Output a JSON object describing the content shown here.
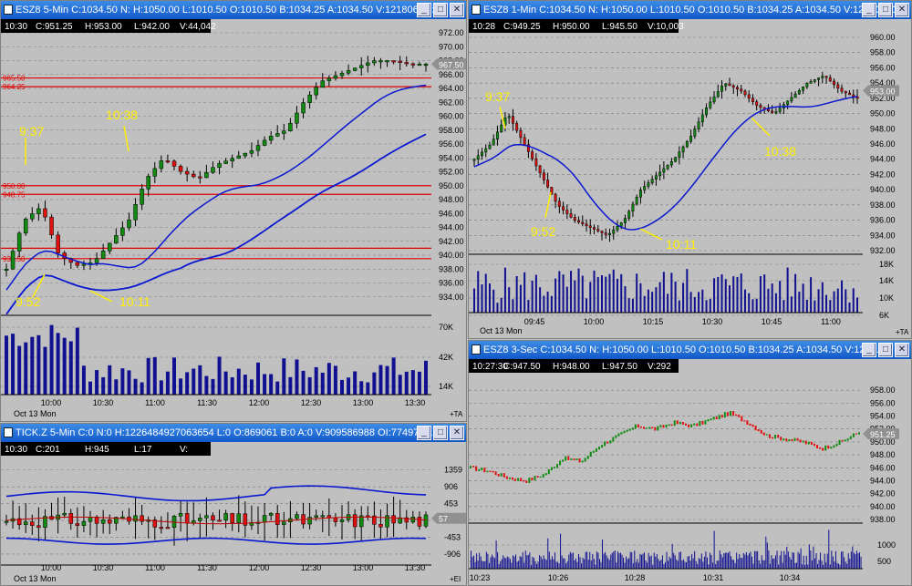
{
  "windows": {
    "w1": {
      "title": "ESZ8 5-Min C:1034.50 N: H:1050.00 L:1010.50 O:1010.50 B:1034.25 A:1034.50 V:121806 OI:",
      "info": {
        "time": "10:30",
        "c": "C:951.25",
        "h": "H:953.00",
        "l": "L:942.00",
        "v": "V:44,042"
      }
    },
    "w2": {
      "title": "ESZ8 1-Min C:1034.50 N: H:1050.00 L:1010.50 O:1010.50 B:1034.25 A:1034.50 V:121806 OI:",
      "info": {
        "time": "10:28",
        "c": "C:949.25",
        "h": "H:950.00",
        "l": "L:945.50",
        "v": "V:10,003"
      }
    },
    "w3": {
      "title": "TICK.Z 5-Min C:0 N:0 H:1226484927063654 L:0 O:869061 B:0 A:0 V:909586988 OI:7749745...",
      "info": {
        "time": "10:30",
        "c": "C:201",
        "h": "H:945",
        "l": "L:17",
        "v": "V:"
      }
    },
    "w4": {
      "title": "ESZ8 3-Sec C:1034.50 N: H:1050.00 L:1010.50 O:1010.50 B:1034.25 A:1034.50 V:121...",
      "info": {
        "time": "10:27:30",
        "c": "C:947.50",
        "h": "H:948.00",
        "l": "L:947.50",
        "v": "V:292"
      }
    }
  },
  "buttons": {
    "min": "_",
    "max": "□",
    "close": "✕"
  },
  "corner": {
    "ta": "+TA",
    "ei": "+EI"
  },
  "colors": {
    "up": "#108a10",
    "down": "#e01010",
    "ma": "#0a18d0",
    "level": "#e00000",
    "annot": "#ffee00",
    "volume": "#101090",
    "tick_ma": "#c00000"
  },
  "chart_data": [
    {
      "type": "candlestick",
      "id": "ESZ8 5-Min",
      "date_label": "Oct 13 Mon",
      "ylim": [
        932,
        972
      ],
      "y_ticks": [
        "972.00",
        "970.00",
        "968.00",
        "966.00",
        "964.00",
        "962.00",
        "960.00",
        "958.00",
        "956.00",
        "954.00",
        "952.00",
        "950.00",
        "948.00",
        "946.00",
        "944.00",
        "942.00",
        "940.00",
        "938.00",
        "936.00",
        "934.00"
      ],
      "x_ticks": [
        "10:00",
        "10:30",
        "11:00",
        "11:30",
        "12:00",
        "12:30",
        "13:00",
        "13:30"
      ],
      "current_price": "967.50",
      "levels": [
        {
          "label": "965.50",
          "v": 965.5
        },
        {
          "label": "964.25",
          "v": 964.25
        },
        {
          "label": "950.00",
          "v": 950.0
        },
        {
          "label": "948.75",
          "v": 948.75
        },
        {
          "label": "",
          "v": 941.0
        },
        {
          "label": "939.50",
          "v": 939.5
        }
      ],
      "annotations": [
        "9:37",
        "9:52",
        "10:11",
        "10:38"
      ],
      "volume_ticks": [
        "70K",
        "42K",
        "14K"
      ]
    },
    {
      "type": "candlestick",
      "id": "ESZ8 1-Min",
      "date_label": "Oct 13 Mon",
      "ylim": [
        932,
        960
      ],
      "y_ticks": [
        "960.00",
        "958.00",
        "956.00",
        "954.00",
        "952.00",
        "950.00",
        "948.00",
        "946.00",
        "944.00",
        "942.00",
        "940.00",
        "938.00",
        "936.00",
        "934.00",
        "932.00"
      ],
      "x_ticks": [
        "09:45",
        "10:00",
        "10:15",
        "10:30",
        "10:45",
        "11:00"
      ],
      "current_price": "953.00",
      "annotations": [
        "9:37",
        "9:52",
        "10:11",
        "10:38"
      ],
      "volume_ticks": [
        "18K",
        "14K",
        "10K",
        "6K"
      ]
    },
    {
      "type": "candlestick",
      "id": "TICK.Z 5-Min",
      "date_label": "Oct 13 Mon",
      "y_ticks": [
        "1359",
        "906",
        "453",
        "0",
        "-453",
        "-906"
      ],
      "x_ticks": [
        "10:00",
        "10:30",
        "11:00",
        "11:30",
        "12:00",
        "12:30",
        "13:00",
        "13:30"
      ],
      "current_value": "57"
    },
    {
      "type": "line",
      "id": "ESZ8 3-Sec",
      "ylim": [
        938,
        960
      ],
      "y_ticks": [
        "958.00",
        "956.00",
        "954.00",
        "952.00",
        "950.00",
        "948.00",
        "946.00",
        "944.00",
        "942.00",
        "940.00",
        "938.00"
      ],
      "x_ticks": [
        "10:23",
        "10:26",
        "10:28",
        "10:31",
        "10:34"
      ],
      "current_price": "951.25",
      "volume_ticks": [
        "1000",
        "500"
      ]
    }
  ]
}
